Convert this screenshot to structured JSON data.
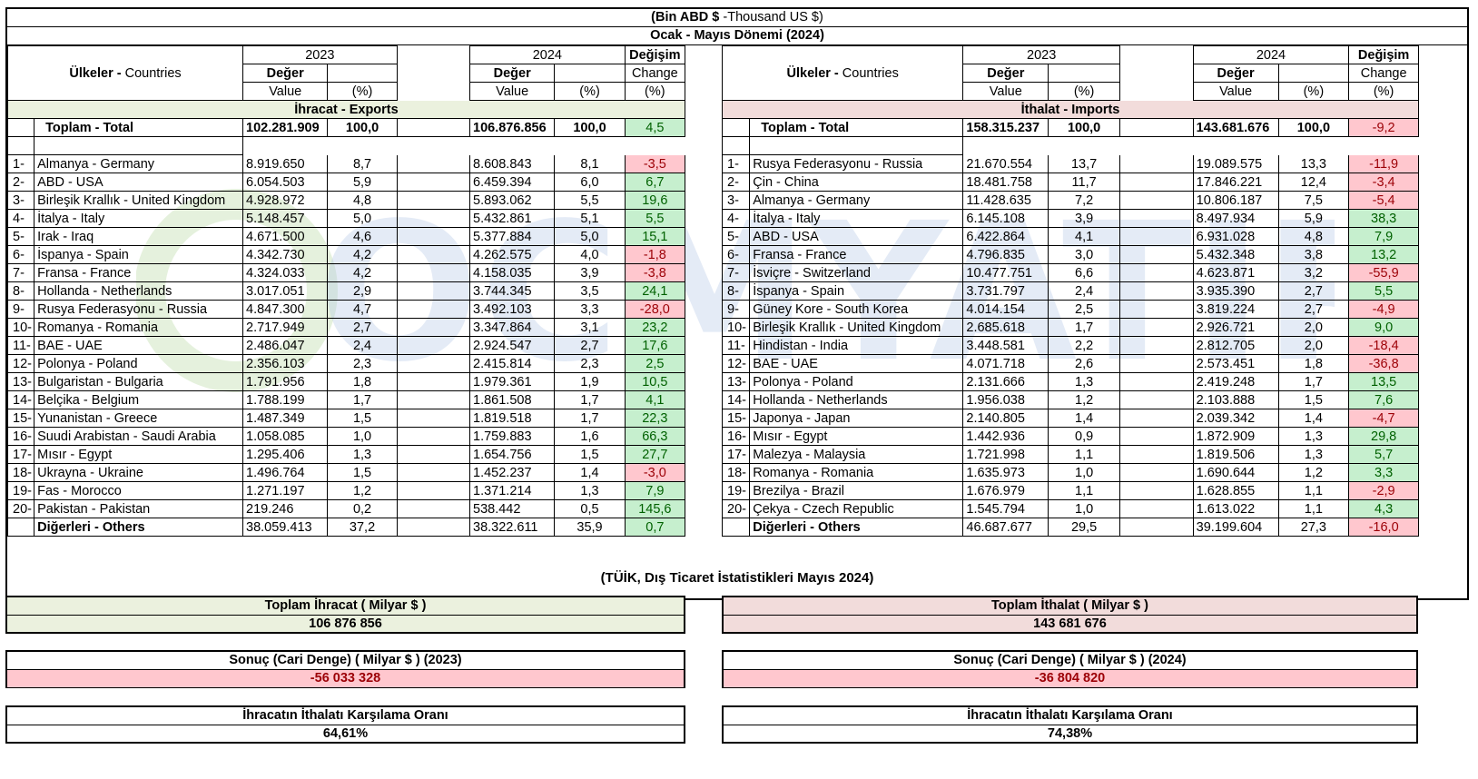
{
  "header": {
    "unit_bold": "(Bin ABD $",
    "unit_rest": " -Thousand US $)",
    "period": "Ocak - Mayıs Dönemi (2024)"
  },
  "colors": {
    "positive_bg": "#c6efce",
    "positive_text": "#006100",
    "negative_bg": "#ffc7ce",
    "negative_text": "#9c0006",
    "export_band": "#ebf1de",
    "import_band": "#f2dcdb"
  },
  "watermark": "OCMYATIRIM",
  "exports": {
    "col_countries_tr": "Ülkeler - ",
    "col_countries_en": "Countries",
    "year1": "2023",
    "year2": "2024",
    "value_tr": "Değer",
    "value_en": "Value",
    "pct": "(%)",
    "change_tr": "Değişim",
    "change_en": "Change",
    "change_pct": "(%)",
    "section": "İhracat - Exports",
    "total": {
      "label": "Toplam - Total",
      "v2023": "102.281.909",
      "p2023": "100,0",
      "v2024": "106.876.856",
      "p2024": "100,0",
      "chg": "4,5",
      "pos": true
    },
    "rows": [
      {
        "no": "1-",
        "name": "Almanya - Germany",
        "v2023": "8.919.650",
        "p2023": "8,7",
        "v2024": "8.608.843",
        "p2024": "8,1",
        "chg": "-3,5",
        "pos": false
      },
      {
        "no": "2-",
        "name": "ABD - USA",
        "v2023": "6.054.503",
        "p2023": "5,9",
        "v2024": "6.459.394",
        "p2024": "6,0",
        "chg": "6,7",
        "pos": true
      },
      {
        "no": "3-",
        "name": "Birleşik Krallık - United Kingdom",
        "v2023": "4.928.972",
        "p2023": "4,8",
        "v2024": "5.893.062",
        "p2024": "5,5",
        "chg": "19,6",
        "pos": true
      },
      {
        "no": "4-",
        "name": "İtalya - Italy",
        "v2023": "5.148.457",
        "p2023": "5,0",
        "v2024": "5.432.861",
        "p2024": "5,1",
        "chg": "5,5",
        "pos": true
      },
      {
        "no": "5-",
        "name": "Irak - Iraq",
        "v2023": "4.671.500",
        "p2023": "4,6",
        "v2024": "5.377.884",
        "p2024": "5,0",
        "chg": "15,1",
        "pos": true
      },
      {
        "no": "6-",
        "name": "İspanya - Spain",
        "v2023": "4.342.730",
        "p2023": "4,2",
        "v2024": "4.262.575",
        "p2024": "4,0",
        "chg": "-1,8",
        "pos": false
      },
      {
        "no": "7-",
        "name": "Fransa - France",
        "v2023": "4.324.033",
        "p2023": "4,2",
        "v2024": "4.158.035",
        "p2024": "3,9",
        "chg": "-3,8",
        "pos": false
      },
      {
        "no": "8-",
        "name": "Hollanda - Netherlands",
        "v2023": "3.017.051",
        "p2023": "2,9",
        "v2024": "3.744.345",
        "p2024": "3,5",
        "chg": "24,1",
        "pos": true
      },
      {
        "no": "9-",
        "name": "Rusya Federasyonu - Russia",
        "v2023": "4.847.300",
        "p2023": "4,7",
        "v2024": "3.492.103",
        "p2024": "3,3",
        "chg": "-28,0",
        "pos": false
      },
      {
        "no": "10-",
        "name": "Romanya - Romania",
        "v2023": "2.717.949",
        "p2023": "2,7",
        "v2024": "3.347.864",
        "p2024": "3,1",
        "chg": "23,2",
        "pos": true
      },
      {
        "no": "11-",
        "name": "BAE - UAE",
        "v2023": "2.486.047",
        "p2023": "2,4",
        "v2024": "2.924.547",
        "p2024": "2,7",
        "chg": "17,6",
        "pos": true
      },
      {
        "no": "12-",
        "name": "Polonya - Poland",
        "v2023": "2.356.103",
        "p2023": "2,3",
        "v2024": "2.415.814",
        "p2024": "2,3",
        "chg": "2,5",
        "pos": true
      },
      {
        "no": "13-",
        "name": "Bulgaristan - Bulgaria",
        "v2023": "1.791.956",
        "p2023": "1,8",
        "v2024": "1.979.361",
        "p2024": "1,9",
        "chg": "10,5",
        "pos": true
      },
      {
        "no": "14-",
        "name": "Belçika - Belgium",
        "v2023": "1.788.199",
        "p2023": "1,7",
        "v2024": "1.861.508",
        "p2024": "1,7",
        "chg": "4,1",
        "pos": true
      },
      {
        "no": "15-",
        "name": "Yunanistan - Greece",
        "v2023": "1.487.349",
        "p2023": "1,5",
        "v2024": "1.819.518",
        "p2024": "1,7",
        "chg": "22,3",
        "pos": true
      },
      {
        "no": "16-",
        "name": "Suudi Arabistan - Saudi Arabia",
        "v2023": "1.058.085",
        "p2023": "1,0",
        "v2024": "1.759.883",
        "p2024": "1,6",
        "chg": "66,3",
        "pos": true
      },
      {
        "no": "17-",
        "name": "Mısır - Egypt",
        "v2023": "1.295.406",
        "p2023": "1,3",
        "v2024": "1.654.756",
        "p2024": "1,5",
        "chg": "27,7",
        "pos": true
      },
      {
        "no": "18-",
        "name": "Ukrayna - Ukraine",
        "v2023": "1.496.764",
        "p2023": "1,5",
        "v2024": "1.452.237",
        "p2024": "1,4",
        "chg": "-3,0",
        "pos": false
      },
      {
        "no": "19-",
        "name": "Fas - Morocco",
        "v2023": "1.271.197",
        "p2023": "1,2",
        "v2024": "1.371.214",
        "p2024": "1,3",
        "chg": "7,9",
        "pos": true
      },
      {
        "no": "20-",
        "name": "Pakistan - Pakistan",
        "v2023": "219.246",
        "p2023": "0,2",
        "v2024": "538.442",
        "p2024": "0,5",
        "chg": "145,6",
        "pos": true
      }
    ],
    "others": {
      "label": "Diğerleri - Others",
      "v2023": "38.059.413",
      "p2023": "37,2",
      "v2024": "38.322.611",
      "p2024": "35,9",
      "chg": "0,7",
      "pos": true
    }
  },
  "imports": {
    "col_countries_tr": "Ülkeler - ",
    "col_countries_en": "Countries",
    "year1": "2023",
    "year2": "2024",
    "value_tr": "Değer",
    "value_en": "Value",
    "pct": "(%)",
    "change_tr": "Değişim",
    "change_en": "Change",
    "change_pct": "(%)",
    "section": "İthalat - Imports",
    "total": {
      "label": "Toplam - Total",
      "v2023": "158.315.237",
      "p2023": "100,0",
      "v2024": "143.681.676",
      "p2024": "100,0",
      "chg": "-9,2",
      "pos": false
    },
    "rows": [
      {
        "no": "1-",
        "name": "Rusya Federasyonu - Russia",
        "v2023": "21.670.554",
        "p2023": "13,7",
        "v2024": "19.089.575",
        "p2024": "13,3",
        "chg": "-11,9",
        "pos": false
      },
      {
        "no": "2-",
        "name": "Çin - China",
        "v2023": "18.481.758",
        "p2023": "11,7",
        "v2024": "17.846.221",
        "p2024": "12,4",
        "chg": "-3,4",
        "pos": false
      },
      {
        "no": "3-",
        "name": "Almanya - Germany",
        "v2023": "11.428.635",
        "p2023": "7,2",
        "v2024": "10.806.187",
        "p2024": "7,5",
        "chg": "-5,4",
        "pos": false
      },
      {
        "no": "4-",
        "name": "İtalya - Italy",
        "v2023": "6.145.108",
        "p2023": "3,9",
        "v2024": "8.497.934",
        "p2024": "5,9",
        "chg": "38,3",
        "pos": true
      },
      {
        "no": "5-",
        "name": "ABD - USA",
        "v2023": "6.422.864",
        "p2023": "4,1",
        "v2024": "6.931.028",
        "p2024": "4,8",
        "chg": "7,9",
        "pos": true
      },
      {
        "no": "6-",
        "name": "Fransa - France",
        "v2023": "4.796.835",
        "p2023": "3,0",
        "v2024": "5.432.348",
        "p2024": "3,8",
        "chg": "13,2",
        "pos": true
      },
      {
        "no": "7-",
        "name": "İsviçre - Switzerland",
        "v2023": "10.477.751",
        "p2023": "6,6",
        "v2024": "4.623.871",
        "p2024": "3,2",
        "chg": "-55,9",
        "pos": false
      },
      {
        "no": "8-",
        "name": "İspanya - Spain",
        "v2023": "3.731.797",
        "p2023": "2,4",
        "v2024": "3.935.390",
        "p2024": "2,7",
        "chg": "5,5",
        "pos": true
      },
      {
        "no": "9-",
        "name": "Güney Kore - South Korea",
        "v2023": "4.014.154",
        "p2023": "2,5",
        "v2024": "3.819.224",
        "p2024": "2,7",
        "chg": "-4,9",
        "pos": false
      },
      {
        "no": "10-",
        "name": "Birleşik Krallık - United Kingdom",
        "v2023": "2.685.618",
        "p2023": "1,7",
        "v2024": "2.926.721",
        "p2024": "2,0",
        "chg": "9,0",
        "pos": true
      },
      {
        "no": "11-",
        "name": "Hindistan - India",
        "v2023": "3.448.581",
        "p2023": "2,2",
        "v2024": "2.812.705",
        "p2024": "2,0",
        "chg": "-18,4",
        "pos": false
      },
      {
        "no": "12-",
        "name": "BAE - UAE",
        "v2023": "4.071.718",
        "p2023": "2,6",
        "v2024": "2.573.451",
        "p2024": "1,8",
        "chg": "-36,8",
        "pos": false
      },
      {
        "no": "13-",
        "name": "Polonya - Poland",
        "v2023": "2.131.666",
        "p2023": "1,3",
        "v2024": "2.419.248",
        "p2024": "1,7",
        "chg": "13,5",
        "pos": true
      },
      {
        "no": "14-",
        "name": "Hollanda - Netherlands",
        "v2023": "1.956.038",
        "p2023": "1,2",
        "v2024": "2.103.888",
        "p2024": "1,5",
        "chg": "7,6",
        "pos": true
      },
      {
        "no": "15-",
        "name": "Japonya - Japan",
        "v2023": "2.140.805",
        "p2023": "1,4",
        "v2024": "2.039.342",
        "p2024": "1,4",
        "chg": "-4,7",
        "pos": false
      },
      {
        "no": "16-",
        "name": "Mısır - Egypt",
        "v2023": "1.442.936",
        "p2023": "0,9",
        "v2024": "1.872.909",
        "p2024": "1,3",
        "chg": "29,8",
        "pos": true
      },
      {
        "no": "17-",
        "name": "Malezya - Malaysia",
        "v2023": "1.721.998",
        "p2023": "1,1",
        "v2024": "1.819.506",
        "p2024": "1,3",
        "chg": "5,7",
        "pos": true
      },
      {
        "no": "18-",
        "name": "Romanya - Romania",
        "v2023": "1.635.973",
        "p2023": "1,0",
        "v2024": "1.690.644",
        "p2024": "1,2",
        "chg": "3,3",
        "pos": true
      },
      {
        "no": "19-",
        "name": "Brezilya - Brazil",
        "v2023": "1.676.979",
        "p2023": "1,1",
        "v2024": "1.628.855",
        "p2024": "1,1",
        "chg": "-2,9",
        "pos": false
      },
      {
        "no": "20-",
        "name": "Çekya - Czech Republic",
        "v2023": "1.545.794",
        "p2023": "1,0",
        "v2024": "1.613.022",
        "p2024": "1,1",
        "chg": "4,3",
        "pos": true
      }
    ],
    "others": {
      "label": "Diğerleri - Others",
      "v2023": "46.687.677",
      "p2023": "29,5",
      "v2024": "39.199.604",
      "p2024": "27,3",
      "chg": "-16,0",
      "pos": false
    }
  },
  "source": "(TÜİK, Dış Ticaret İstatistikleri Mayıs 2024)",
  "summary": {
    "total_export_label": "Toplam İhracat ( Milyar $ )",
    "total_export_value": "106 876 856",
    "total_import_label": "Toplam İthalat ( Milyar $ )",
    "total_import_value": "143 681 676",
    "balance_2023_label": "Sonuç (Cari Denge) ( Milyar $ ) (2023)",
    "balance_2023_value": "-56 033 328",
    "balance_2024_label": "Sonuç (Cari Denge) ( Milyar $ ) (2024)",
    "balance_2024_value": "-36 804 820",
    "coverage_label_left": "İhracatın İthalatı Karşılama Oranı",
    "coverage_value_left": "64,61%",
    "coverage_label_right": "İhracatın İthalatı Karşılama Oranı",
    "coverage_value_right": "74,38%"
  }
}
